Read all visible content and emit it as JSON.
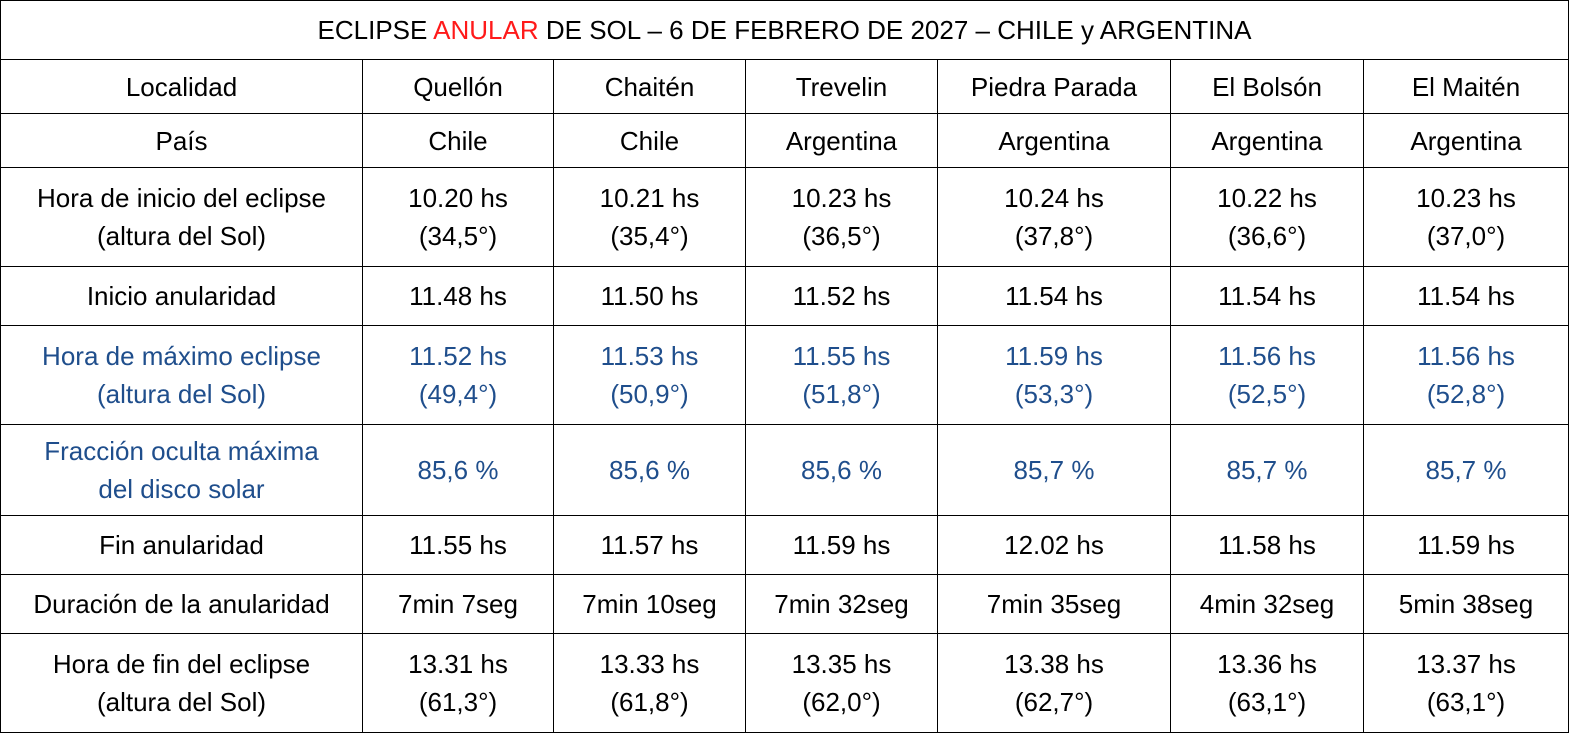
{
  "title": {
    "part1": "ECLIPSE ",
    "highlight": "ANULAR",
    "part2": " DE SOL – 6 DE FEBRERO DE 2027 – CHILE y ARGENTINA",
    "highlight_color": "#ff1a1a"
  },
  "accent_blue": "#1f4e8c",
  "header": {
    "label": "Localidad",
    "columns": [
      "Quellón",
      "Chaitén",
      "Trevelin",
      "Piedra Parada",
      "El Bolsón",
      "El Maitén"
    ]
  },
  "rows": [
    {
      "label": [
        "País"
      ],
      "values": [
        [
          "Chile"
        ],
        [
          "Chile"
        ],
        [
          "Argentina"
        ],
        [
          "Argentina"
        ],
        [
          "Argentina"
        ],
        [
          "Argentina"
        ]
      ]
    },
    {
      "label": [
        "Hora de inicio del eclipse",
        "(altura del Sol)"
      ],
      "values": [
        [
          "10.20 hs",
          "(34,5°)"
        ],
        [
          "10.21 hs",
          "(35,4°)"
        ],
        [
          "10.23 hs",
          "(36,5°)"
        ],
        [
          "10.24 hs",
          "(37,8°)"
        ],
        [
          "10.22 hs",
          "(36,6°)"
        ],
        [
          "10.23 hs",
          "(37,0°)"
        ]
      ]
    },
    {
      "label": [
        "Inicio anularidad"
      ],
      "values": [
        [
          "11.48 hs"
        ],
        [
          "11.50 hs"
        ],
        [
          "11.52 hs"
        ],
        [
          "11.54 hs"
        ],
        [
          "11.54 hs"
        ],
        [
          "11.54 hs"
        ]
      ]
    },
    {
      "label": [
        "Hora de máximo eclipse",
        "(altura del Sol)"
      ],
      "values": [
        [
          "11.52 hs",
          "(49,4°)"
        ],
        [
          "11.53 hs",
          "(50,9°)"
        ],
        [
          "11.55 hs",
          "(51,8°)"
        ],
        [
          "11.59 hs",
          "(53,3°)"
        ],
        [
          "11.56 hs",
          "(52,5°)"
        ],
        [
          "11.56 hs",
          "(52,8°)"
        ]
      ]
    },
    {
      "label": [
        "Fracción oculta máxima",
        "del disco solar"
      ],
      "values": [
        [
          "85,6 %"
        ],
        [
          "85,6 %"
        ],
        [
          "85,6 %"
        ],
        [
          "85,7 %"
        ],
        [
          "85,7 %"
        ],
        [
          "85,7 %"
        ]
      ]
    },
    {
      "label": [
        "Fin anularidad"
      ],
      "values": [
        [
          "11.55 hs"
        ],
        [
          "11.57 hs"
        ],
        [
          "11.59 hs"
        ],
        [
          "12.02 hs"
        ],
        [
          "11.58 hs"
        ],
        [
          "11.59 hs"
        ]
      ]
    },
    {
      "label": [
        "Duración de la anularidad"
      ],
      "values": [
        [
          "7min 7seg"
        ],
        [
          "7min 10seg"
        ],
        [
          "7min 32seg"
        ],
        [
          "7min 35seg"
        ],
        [
          "4min 32seg"
        ],
        [
          "5min 38seg"
        ]
      ]
    },
    {
      "label": [
        "Hora de fin del eclipse",
        "(altura del Sol)"
      ],
      "values": [
        [
          "13.31 hs",
          "(61,3°)"
        ],
        [
          "13.33 hs",
          "(61,8°)"
        ],
        [
          "13.35 hs",
          "(62,0°)"
        ],
        [
          "13.38 hs",
          "(62,7°)"
        ],
        [
          "13.36 hs",
          "(63,1°)"
        ],
        [
          "13.37 hs",
          "(63,1°)"
        ]
      ]
    }
  ]
}
